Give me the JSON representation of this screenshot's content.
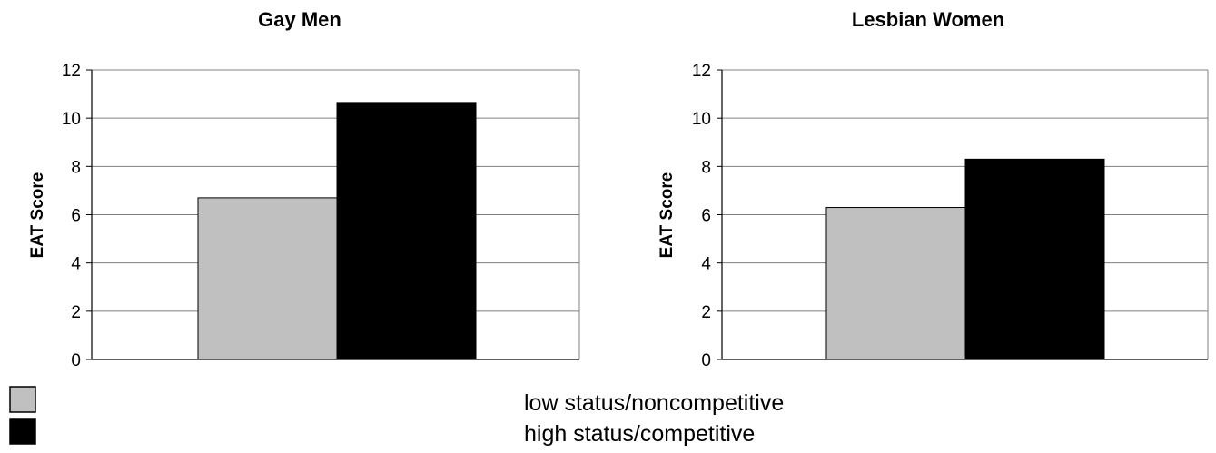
{
  "chart_data": [
    {
      "type": "bar",
      "title": "Gay Men",
      "xlabel": "",
      "ylabel": "EAT Score",
      "ylim": [
        0,
        12
      ],
      "yticks": [
        0,
        2,
        4,
        6,
        8,
        10,
        12
      ],
      "grid": true,
      "series": [
        {
          "name": "low status/noncompetitive",
          "values": [
            6.7
          ]
        },
        {
          "name": "high status/competitive",
          "values": [
            10.65
          ]
        }
      ]
    },
    {
      "type": "bar",
      "title": "Lesbian Women",
      "xlabel": "",
      "ylabel": "EAT Score",
      "ylim": [
        0,
        12
      ],
      "yticks": [
        0,
        2,
        4,
        6,
        8,
        10,
        12
      ],
      "grid": true,
      "series": [
        {
          "name": "low status/noncompetitive",
          "values": [
            6.3
          ]
        },
        {
          "name": "high status/competitive",
          "values": [
            8.3
          ]
        }
      ]
    }
  ],
  "legend": {
    "placement": "bottom",
    "items": [
      {
        "label": "low status/noncompetitive",
        "color": "#c0c0c0"
      },
      {
        "label": "high status/competitive",
        "color": "#000000"
      }
    ]
  },
  "colors": {
    "series": [
      "#c0c0c0",
      "#000000"
    ],
    "grid": "#808080",
    "axis": "#808080"
  }
}
